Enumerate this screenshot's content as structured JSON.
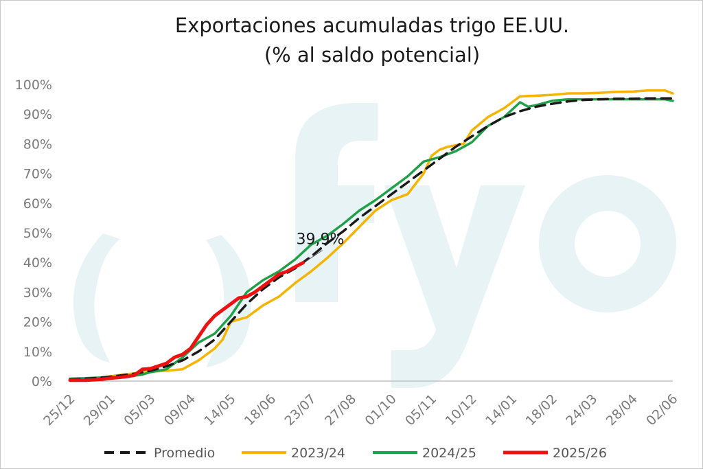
{
  "chart_data": {
    "type": "line",
    "title_lines": [
      "Exportaciones acumuladas trigo EE.UU.",
      "(% al saldo potencial)"
    ],
    "xlabel": "",
    "ylabel": "",
    "x_tick_labels": [
      "25/12",
      "29/01",
      "05/03",
      "09/04",
      "14/05",
      "18/06",
      "23/07",
      "27/08",
      "01/10",
      "05/11",
      "10/12",
      "14/01",
      "18/02",
      "24/03",
      "28/04",
      "02/06"
    ],
    "y_tick_labels": [
      "0%",
      "10%",
      "20%",
      "30%",
      "40%",
      "50%",
      "60%",
      "70%",
      "80%",
      "90%",
      "100%"
    ],
    "ylim": [
      0,
      100
    ],
    "x_range_weeks": [
      0,
      75
    ],
    "grid": false,
    "legend_position": "bottom",
    "annotation": {
      "text": "39,9%",
      "x": 29,
      "y": 39.9
    },
    "watermark": "fyo",
    "series": [
      {
        "name": "Promedio",
        "color": "#1a1a1a",
        "dash": true,
        "x": [
          0,
          2,
          4,
          6,
          8,
          10,
          12,
          14,
          16,
          18,
          20,
          22,
          24,
          26,
          28,
          30,
          32,
          34,
          36,
          38,
          40,
          42,
          44,
          46,
          48,
          50,
          52,
          54,
          56,
          58,
          60,
          62,
          64,
          66,
          68,
          70,
          72,
          74,
          75
        ],
        "y": [
          0.6,
          0.8,
          1.2,
          1.8,
          2.5,
          3.5,
          5,
          7,
          10,
          14,
          20,
          26,
          31,
          35,
          38,
          42,
          46.5,
          50.5,
          55,
          59,
          63,
          67,
          71,
          75,
          79,
          82.5,
          86,
          89,
          91,
          92.5,
          93.5,
          94.3,
          94.8,
          95,
          95.2,
          95.2,
          95.3,
          95.3,
          95.3
        ]
      },
      {
        "name": "2023/24",
        "color": "#f5b400",
        "dash": false,
        "x": [
          0,
          2,
          4,
          6,
          8,
          10,
          12,
          14,
          16,
          18,
          19,
          20,
          22,
          24,
          26,
          28,
          30,
          32,
          34,
          36,
          38,
          40,
          42,
          44,
          45,
          46,
          47,
          48,
          49,
          50,
          52,
          54,
          56,
          58,
          60,
          62,
          64,
          66,
          68,
          70,
          72,
          74,
          75
        ],
        "y": [
          0.6,
          0.8,
          1.2,
          2,
          2.6,
          3.2,
          3.5,
          4,
          7,
          11,
          14,
          20,
          21.5,
          25.5,
          28.5,
          33,
          37,
          41.5,
          46.5,
          52,
          57.5,
          61,
          63,
          70,
          76,
          78,
          79,
          79.5,
          80,
          84.5,
          89,
          92,
          96,
          96.2,
          96.5,
          97,
          97,
          97.2,
          97.5,
          97.6,
          98,
          98,
          97
        ]
      },
      {
        "name": "2024/25",
        "color": "#21a04a",
        "dash": false,
        "x": [
          0,
          2,
          4,
          6,
          8,
          9,
          10,
          11,
          12,
          14,
          16,
          18,
          20,
          22,
          24,
          26,
          28,
          30,
          32,
          34,
          36,
          38,
          40,
          42,
          44,
          46,
          48,
          50,
          52,
          54,
          56,
          57,
          58,
          60,
          62,
          64,
          66,
          68,
          70,
          72,
          74,
          75
        ],
        "y": [
          0.8,
          1,
          1.2,
          1.5,
          1.8,
          2.2,
          3,
          3.5,
          4,
          8,
          13,
          16,
          22,
          30,
          34,
          37,
          41,
          46,
          49,
          53,
          57.5,
          61,
          65,
          69,
          74,
          75.5,
          77.5,
          80.5,
          86,
          89,
          94,
          92.5,
          93,
          94.5,
          95,
          95,
          95,
          95,
          95,
          95,
          95,
          94.5
        ]
      },
      {
        "name": "2025/26",
        "color": "#ee1111",
        "dash": false,
        "x": [
          0,
          2,
          4,
          5,
          6,
          7,
          8,
          9,
          10,
          12,
          13,
          14,
          15,
          16,
          17,
          18,
          19,
          20,
          21,
          22,
          23,
          24,
          25,
          26,
          27,
          28,
          29
        ],
        "y": [
          0.3,
          0.3,
          0.6,
          1,
          1.2,
          1.5,
          2,
          4,
          4.2,
          6,
          8,
          9,
          11,
          15,
          19,
          22,
          24,
          26,
          28,
          28.5,
          30,
          32,
          34,
          36,
          37,
          38.5,
          39.9
        ]
      }
    ]
  }
}
